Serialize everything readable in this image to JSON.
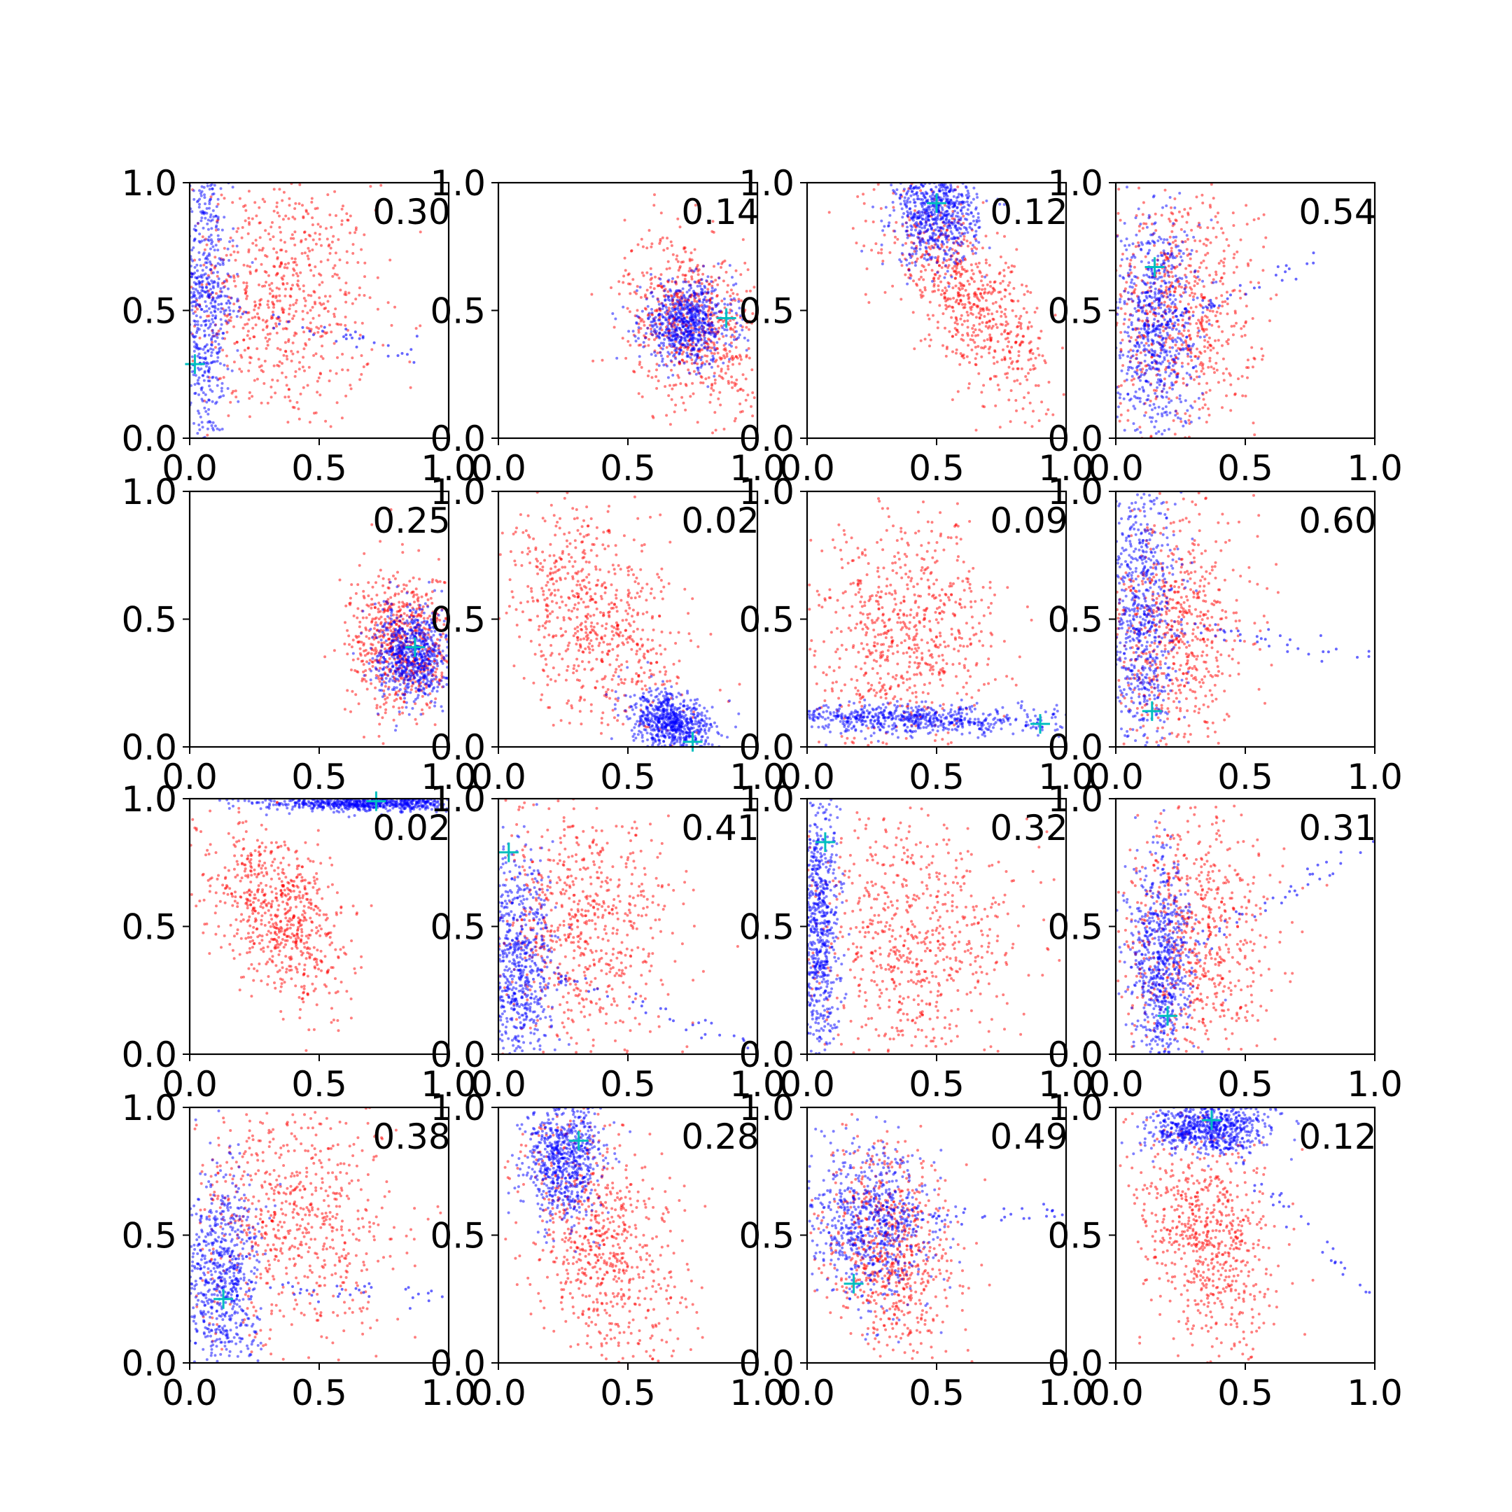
{
  "figure": {
    "type": "scatter",
    "xlim": [
      0.0,
      1.0
    ],
    "ylim": [
      0.0,
      1.0
    ],
    "x_ticks": [
      "0.0",
      "0.5",
      "1.0"
    ],
    "y_ticks": [
      "0.0",
      "0.5",
      "1.0"
    ],
    "grid": false,
    "colors": {
      "series_a": "#ff0000",
      "series_b": "#0000ff",
      "marker": "#00bfbf"
    }
  },
  "chart_data": [
    {
      "label": "0.30",
      "marker": [
        0.02,
        0.29
      ],
      "red": {
        "cx": 0.35,
        "cy": 0.55,
        "sx": 0.18,
        "sy": 0.25,
        "rho": -0.1
      },
      "blue": {
        "cx": 0.05,
        "cy": 0.55,
        "sx": 0.06,
        "sy": 0.32,
        "rho": 0.0,
        "tail": [
          0.95,
          0.3
        ]
      }
    },
    {
      "label": "0.14",
      "marker": [
        0.88,
        0.47
      ],
      "red": {
        "cx": 0.75,
        "cy": 0.45,
        "sx": 0.13,
        "sy": 0.17,
        "rho": -0.3
      },
      "blue": {
        "cx": 0.73,
        "cy": 0.45,
        "sx": 0.09,
        "sy": 0.08,
        "rho": 0.0
      }
    },
    {
      "label": "0.12",
      "marker": [
        0.5,
        0.92
      ],
      "red": {
        "cx": 0.62,
        "cy": 0.55,
        "sx": 0.16,
        "sy": 0.2,
        "rho": -0.7
      },
      "blue": {
        "cx": 0.5,
        "cy": 0.88,
        "sx": 0.08,
        "sy": 0.1,
        "rho": 0.0
      }
    },
    {
      "label": "0.54",
      "marker": [
        0.15,
        0.67
      ],
      "red": {
        "cx": 0.25,
        "cy": 0.5,
        "sx": 0.15,
        "sy": 0.25,
        "rho": 0.0
      },
      "blue": {
        "cx": 0.15,
        "cy": 0.45,
        "sx": 0.08,
        "sy": 0.22,
        "rho": 0.0,
        "tail": [
          0.8,
          0.7
        ]
      }
    },
    {
      "label": "0.25",
      "marker": [
        0.87,
        0.39
      ],
      "red": {
        "cx": 0.82,
        "cy": 0.4,
        "sx": 0.1,
        "sy": 0.14,
        "rho": 0.0
      },
      "blue": {
        "cx": 0.86,
        "cy": 0.36,
        "sx": 0.07,
        "sy": 0.09,
        "rho": 0.0
      }
    },
    {
      "label": "0.02",
      "marker": [
        0.75,
        0.02
      ],
      "red": {
        "cx": 0.38,
        "cy": 0.5,
        "sx": 0.18,
        "sy": 0.22,
        "rho": -0.4
      },
      "blue": {
        "cx": 0.67,
        "cy": 0.09,
        "sx": 0.08,
        "sy": 0.06,
        "rho": -0.3
      }
    },
    {
      "label": "0.09",
      "marker": [
        0.9,
        0.09
      ],
      "red": {
        "cx": 0.38,
        "cy": 0.45,
        "sx": 0.17,
        "sy": 0.22,
        "rho": 0.0
      },
      "blue": {
        "cx": 0.4,
        "cy": 0.11,
        "sx": 0.3,
        "sy": 0.03,
        "rho": -0.2
      }
    },
    {
      "label": "0.60",
      "marker": [
        0.14,
        0.14
      ],
      "red": {
        "cx": 0.23,
        "cy": 0.45,
        "sx": 0.14,
        "sy": 0.24,
        "rho": 0.0
      },
      "blue": {
        "cx": 0.1,
        "cy": 0.5,
        "sx": 0.07,
        "sy": 0.28,
        "rho": 0.0,
        "tail": [
          1.0,
          0.35
        ]
      }
    },
    {
      "label": "0.02",
      "marker": [
        0.72,
        0.99
      ],
      "red": {
        "cx": 0.35,
        "cy": 0.55,
        "sx": 0.13,
        "sy": 0.17,
        "rho": -0.4
      },
      "blue": {
        "cx": 0.7,
        "cy": 0.98,
        "sx": 0.22,
        "sy": 0.015,
        "rho": 0.0
      }
    },
    {
      "label": "0.41",
      "marker": [
        0.04,
        0.79
      ],
      "red": {
        "cx": 0.32,
        "cy": 0.5,
        "sx": 0.18,
        "sy": 0.25,
        "rho": 0.0
      },
      "blue": {
        "cx": 0.08,
        "cy": 0.35,
        "sx": 0.07,
        "sy": 0.22,
        "rho": 0.0,
        "tail": [
          0.95,
          0.05
        ]
      }
    },
    {
      "label": "0.32",
      "marker": [
        0.07,
        0.83
      ],
      "red": {
        "cx": 0.4,
        "cy": 0.45,
        "sx": 0.2,
        "sy": 0.25,
        "rho": 0.0
      },
      "blue": {
        "cx": 0.05,
        "cy": 0.5,
        "sx": 0.04,
        "sy": 0.28,
        "rho": 0.0
      }
    },
    {
      "label": "0.31",
      "marker": [
        0.2,
        0.15
      ],
      "red": {
        "cx": 0.3,
        "cy": 0.45,
        "sx": 0.15,
        "sy": 0.25,
        "rho": 0.0
      },
      "blue": {
        "cx": 0.17,
        "cy": 0.35,
        "sx": 0.06,
        "sy": 0.22,
        "rho": 0.0,
        "tail": [
          0.95,
          0.8
        ]
      }
    },
    {
      "label": "0.38",
      "marker": [
        0.13,
        0.25
      ],
      "red": {
        "cx": 0.4,
        "cy": 0.55,
        "sx": 0.2,
        "sy": 0.25,
        "rho": 0.0
      },
      "blue": {
        "cx": 0.12,
        "cy": 0.3,
        "sx": 0.07,
        "sy": 0.22,
        "rho": 0.0,
        "tail": [
          1.0,
          0.26
        ]
      }
    },
    {
      "label": "0.28",
      "marker": [
        0.31,
        0.87
      ],
      "red": {
        "cx": 0.4,
        "cy": 0.45,
        "sx": 0.15,
        "sy": 0.25,
        "rho": -0.4
      },
      "blue": {
        "cx": 0.25,
        "cy": 0.8,
        "sx": 0.07,
        "sy": 0.12,
        "rho": 0.0
      }
    },
    {
      "label": "0.49",
      "marker": [
        0.18,
        0.31
      ],
      "red": {
        "cx": 0.32,
        "cy": 0.45,
        "sx": 0.13,
        "sy": 0.2,
        "rho": -0.2
      },
      "blue": {
        "cx": 0.25,
        "cy": 0.55,
        "sx": 0.12,
        "sy": 0.15,
        "rho": 0.0,
        "tail": [
          1.0,
          0.59
        ]
      }
    },
    {
      "label": "0.12",
      "marker": [
        0.37,
        0.95
      ],
      "red": {
        "cx": 0.35,
        "cy": 0.5,
        "sx": 0.13,
        "sy": 0.22,
        "rho": -0.3
      },
      "blue": {
        "cx": 0.35,
        "cy": 0.92,
        "sx": 0.12,
        "sy": 0.05,
        "rho": 0.0,
        "tail": [
          1.0,
          0.25
        ]
      }
    }
  ]
}
